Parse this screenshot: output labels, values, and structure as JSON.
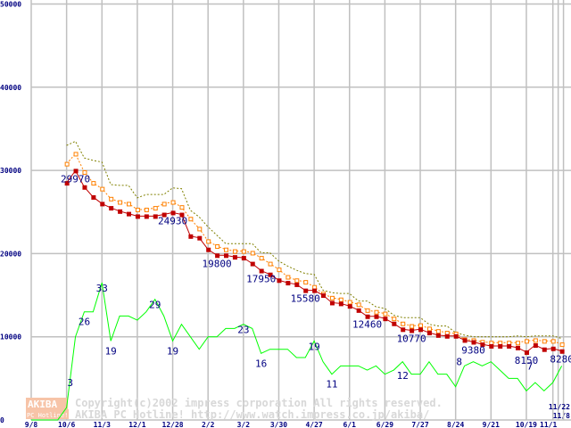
{
  "chart_data": {
    "type": "line",
    "ylim": [
      0,
      50000
    ],
    "yticks": [
      0,
      10000,
      20000,
      30000,
      40000,
      50000
    ],
    "xticks": [
      {
        "w": 0,
        "label": "9/8"
      },
      {
        "w": 4,
        "label": "10/6"
      },
      {
        "w": 8,
        "label": "11/3"
      },
      {
        "w": 12,
        "label": "12/1"
      },
      {
        "w": 16,
        "label": "12/28"
      },
      {
        "w": 20,
        "label": "2/2"
      },
      {
        "w": 24,
        "label": "3/2"
      },
      {
        "w": 28,
        "label": "3/30"
      },
      {
        "w": 32,
        "label": "4/27"
      },
      {
        "w": 36,
        "label": "6/1"
      },
      {
        "w": 40,
        "label": "6/29"
      },
      {
        "w": 44,
        "label": "7/27"
      },
      {
        "w": 48,
        "label": "8/24"
      },
      {
        "w": 52,
        "label": "9/21"
      },
      {
        "w": 56,
        "label": "10/19"
      },
      {
        "w": 59,
        "label": "11/1"
      },
      {
        "w": 59.6,
        "label": "11/8"
      },
      {
        "w": 60.2,
        "label": "11/22"
      }
    ],
    "grid": true,
    "series": [
      {
        "name": "max",
        "color": "#808000",
        "style": "dotted",
        "start": 4,
        "values": [
          33000,
          33500,
          31500,
          31200,
          31000,
          28300,
          28200,
          28200,
          26700,
          27100,
          27100,
          27100,
          27900,
          27800,
          25200,
          24400,
          23200,
          22200,
          21200,
          21200,
          21200,
          21200,
          20100,
          20100,
          19100,
          18500,
          18000,
          17600,
          17500,
          15600,
          15300,
          15200,
          15200,
          14300,
          14300,
          13600,
          13400,
          12600,
          12300,
          12300,
          12300,
          11500,
          11300,
          11300,
          10500,
          10200,
          10000,
          10000,
          10000,
          10000,
          10000,
          10100,
          10000,
          10100,
          10100,
          10100,
          9800
        ]
      },
      {
        "name": "average",
        "color": "#ff8000",
        "style": "dotted-square",
        "start": 4,
        "values": [
          30800,
          32000,
          29800,
          28500,
          27800,
          26600,
          26200,
          26000,
          25300,
          25300,
          25500,
          26000,
          26200,
          25600,
          24200,
          23000,
          21500,
          20900,
          20500,
          20300,
          20300,
          20100,
          19500,
          18800,
          18100,
          17200,
          16800,
          16600,
          16000,
          15200,
          14700,
          14500,
          14200,
          13900,
          13200,
          13000,
          12800,
          12200,
          11600,
          11300,
          11400,
          11000,
          10700,
          10500,
          10400,
          9700,
          9600,
          9400,
          9300,
          9300,
          9300,
          9300,
          9500,
          9600,
          9500,
          9500,
          9100
        ]
      },
      {
        "name": "min",
        "color": "#c00000",
        "style": "solid-square",
        "start": 4,
        "values": [
          28500,
          29970,
          28000,
          26800,
          26000,
          25500,
          25100,
          24800,
          24500,
          24500,
          24500,
          24700,
          24930,
          24700,
          22100,
          21900,
          20500,
          19800,
          19800,
          19600,
          19500,
          18800,
          17950,
          17500,
          16800,
          16500,
          16300,
          15580,
          15580,
          15000,
          14100,
          14000,
          13700,
          13200,
          12460,
          12460,
          12200,
          11600,
          10900,
          10770,
          10900,
          10500,
          10200,
          10100,
          10100,
          9600,
          9380,
          9100,
          8900,
          8900,
          8900,
          8700,
          8150,
          9000,
          8500,
          8600,
          8280
        ]
      },
      {
        "name": "shops",
        "color": "#00ff00",
        "style": "solid",
        "scale": 500,
        "start": 0,
        "values": [
          0,
          0,
          0,
          0,
          3,
          20,
          26,
          26,
          33,
          19,
          25,
          25,
          24,
          26,
          29,
          25,
          19,
          23,
          20,
          17,
          20,
          20,
          22,
          22,
          23,
          22,
          16,
          17,
          17,
          17,
          15,
          15,
          19,
          14,
          11,
          13,
          13,
          13,
          12,
          13,
          11,
          12,
          14,
          11,
          11,
          14,
          11,
          11,
          8,
          13,
          14,
          13,
          14,
          12,
          10,
          10,
          7,
          9,
          7,
          9,
          13
        ]
      }
    ],
    "price_labels": [
      {
        "w": 5,
        "v": 29970,
        "text": "29970"
      },
      {
        "w": 16,
        "v": 24930,
        "text": "24930"
      },
      {
        "w": 21,
        "v": 19800,
        "text": "19800"
      },
      {
        "w": 26,
        "v": 17950,
        "text": "17950"
      },
      {
        "w": 31,
        "v": 15580,
        "text": "15580"
      },
      {
        "w": 38,
        "v": 12460,
        "text": "12460"
      },
      {
        "w": 43,
        "v": 10770,
        "text": "10770"
      },
      {
        "w": 50,
        "v": 9380,
        "text": "9380"
      },
      {
        "w": 56,
        "v": 8150,
        "text": "8150"
      },
      {
        "w": 60,
        "v": 8280,
        "text": "8280"
      }
    ],
    "count_labels": [
      {
        "w": 4,
        "v": 3,
        "text": "3"
      },
      {
        "w": 6,
        "v": 26,
        "text": "26"
      },
      {
        "w": 8,
        "v": 33,
        "text": "33"
      },
      {
        "w": 9,
        "v": 19,
        "text": "19"
      },
      {
        "w": 14,
        "v": 29,
        "text": "29"
      },
      {
        "w": 16,
        "v": 19,
        "text": "19"
      },
      {
        "w": 24,
        "v": 23,
        "text": "23"
      },
      {
        "w": 26,
        "v": 16,
        "text": "16"
      },
      {
        "w": 32,
        "v": 19,
        "text": "19"
      },
      {
        "w": 34,
        "v": 11,
        "text": "11"
      },
      {
        "w": 42,
        "v": 12,
        "text": "12"
      },
      {
        "w": 48,
        "v": 8,
        "text": "8"
      },
      {
        "w": 56,
        "v": 7,
        "text": "7"
      }
    ]
  },
  "watermark": {
    "logo_top": "AKIBA",
    "logo_bottom": "PC Hotline!",
    "line1": "Copyright(c)2002 impress corporation All rights reserved.",
    "line2": "AKIBA PC Hotline!  http://www.watch.impress.co.jp/akiba/"
  }
}
